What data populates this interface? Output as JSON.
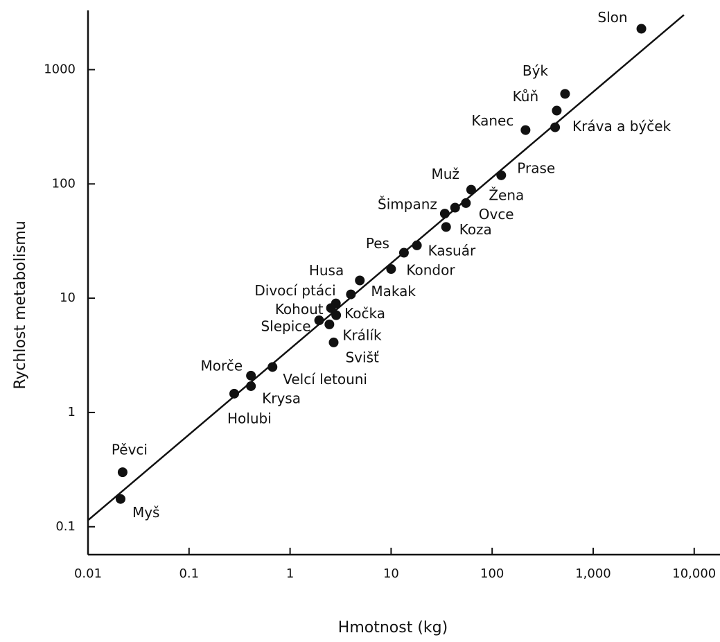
{
  "chart_data": {
    "type": "scatter",
    "log_x": true,
    "log_y": true,
    "color": "#111111",
    "x_label": "Hmotnost (kg)",
    "y_label": "Rychlost metabolismu",
    "labels": [
      "Slon",
      "Býk",
      "Kůň",
      "Kráva a býček",
      "Kanec",
      "Prase",
      "Muž",
      "Žena",
      "Ovce",
      "Šimpanz",
      "Koza",
      "Kasuár",
      "Pes",
      "Kondor",
      "Husa",
      "Makak",
      "Divocí ptáci",
      "Kohout",
      "Kočka",
      "Slepice",
      "Králík",
      "Svišť",
      "Velcí letouni",
      "Morče",
      "Krysa",
      "Holubi",
      "Pěvci",
      "Myš"
    ],
    "x": [
      3000,
      527,
      436,
      420,
      214,
      123,
      62,
      55,
      43,
      34,
      35,
      18,
      13.4,
      10,
      4.9,
      4.0,
      2.84,
      2.54,
      2.86,
      1.94,
      2.45,
      2.7,
      0.67,
      0.41,
      0.41,
      0.28,
      0.022,
      0.021
    ],
    "values": [
      2280,
      614,
      438,
      313,
      296,
      119,
      89,
      68,
      62,
      55,
      42,
      29,
      25,
      18,
      14.3,
      10.8,
      9.0,
      8.2,
      7.1,
      6.4,
      5.9,
      4.1,
      2.5,
      2.1,
      1.7,
      1.46,
      0.3,
      0.175
    ],
    "trend_line": {
      "x": [
        0.01,
        7900
      ],
      "y": [
        0.114,
        3010
      ]
    },
    "xlim": [
      0.01,
      18000
    ],
    "ylim": [
      0.057,
      3300
    ],
    "xticks": [
      0.01,
      0.1,
      1,
      10,
      100,
      {
        "value": 1000,
        "label": "1,000"
      },
      {
        "value": 10000,
        "label": "10,000"
      }
    ],
    "yticks": [
      0.1,
      1,
      10,
      100,
      1000
    ]
  }
}
